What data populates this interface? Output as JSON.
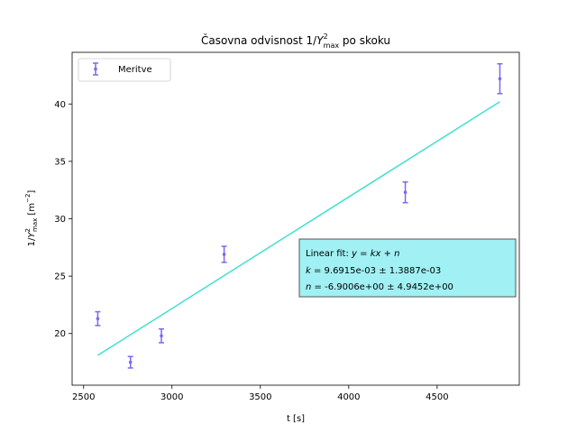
{
  "chart_data": {
    "type": "scatter",
    "title_main": "Časovna odvisnost 1/",
    "title_y": "Y",
    "title_sup": "2",
    "title_sub": "max",
    "title_rest": " po skoku",
    "xlabel": "t [s]",
    "ylabel_pre": "1/",
    "ylabel_y": "Y",
    "ylabel_sup": "2",
    "ylabel_sub": "max",
    "ylabel_unit_pre": " [m",
    "ylabel_unit_sup": "−2",
    "ylabel_unit_post": "]",
    "xlim": [
      2435,
      4965
    ],
    "ylim": [
      15.5,
      44.5
    ],
    "xticks": [
      2500,
      3000,
      3500,
      4000,
      4500
    ],
    "yticks": [
      20,
      25,
      30,
      35,
      40
    ],
    "grid": false,
    "legend_position": "upper-left",
    "series": [
      {
        "name": "Meritve",
        "color": "#7b68ee",
        "x": [
          2580,
          2765,
          2940,
          3295,
          4320,
          4855
        ],
        "y": [
          21.3,
          17.5,
          19.8,
          26.9,
          32.3,
          42.2
        ],
        "yerr": [
          0.6,
          0.5,
          0.6,
          0.7,
          0.9,
          1.3
        ]
      }
    ],
    "fit_line": {
      "color": "#40e0d0",
      "x": [
        2580,
        4855
      ],
      "y": [
        18.1,
        40.2
      ]
    },
    "fit_box": {
      "line1_pre": "Linear fit: ",
      "line1_eq": "y",
      "line1_eq_mid": " = ",
      "line1_k": "kx",
      "line1_plus": " + ",
      "line1_n": "n",
      "line2_var": "k",
      "line2_val": " = 9.6915e-03 ± 1.3887e-03",
      "line3_var": "n",
      "line3_val": " = -6.9006e+00 ± 4.9452e+00",
      "background": "#a0f0f4"
    }
  }
}
